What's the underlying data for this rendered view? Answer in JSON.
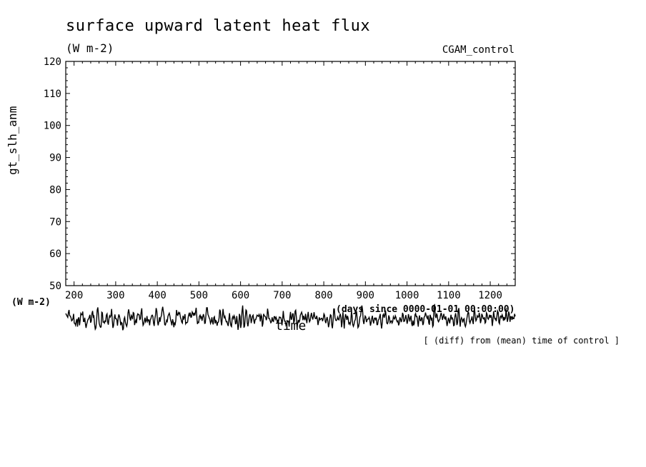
{
  "chart_data": {
    "type": "line",
    "title": "surface upward latent heat flux",
    "units": "(W m-2)",
    "run_label": "CGAM_control",
    "ylabel": "gt_slh_anm",
    "yunit": "(W m-2)",
    "xlabel": "time",
    "xunit": "(days since 0000-01-01 00:00:00)",
    "annotation": "[ (diff) from (mean) time of control ]",
    "xlim": [
      180,
      1260
    ],
    "ylim": [
      50,
      120
    ],
    "xticks": [
      200,
      300,
      400,
      500,
      600,
      700,
      800,
      900,
      1000,
      1100,
      1200
    ],
    "yticks": [
      50,
      60,
      70,
      80,
      90,
      100,
      110,
      120
    ],
    "series": [
      {
        "values": [
          41.3,
          40.9,
          40.5,
          40.1,
          41.6,
          42.4,
          40.6,
          40.5,
          40.0,
          39.0,
          39.2,
          39.8,
          41.2,
          38.3,
          38.2,
          37.6,
          38.9,
          39.6,
          37.2,
          39.6,
          40.1,
          37.6,
          39.2,
          41.3,
          40.9,
          40.9,
          41.9,
          38.8,
          38.8,
          40.0,
          38.1,
          36.8,
          37.9,
          38.8,
          39.5,
          39.6,
          40.3,
          40.9,
          38.4,
          39.0,
          41.3,
          42.1,
          40.2,
          40.5,
          38.0,
          36.4,
          36.8,
          39.1,
          42.4,
          43.2,
          41.0,
          38.3,
          37.5,
          37.0,
          37.1,
          41.7,
          41.5,
          38.6,
          38.7,
          38.3,
          39.0,
          38.8,
          40.8,
          41.2,
          38.6,
          37.8,
          39.7,
          40.6,
          40.2,
          40.7,
          42.7,
          39.2,
          36.8,
          37.5,
          39.9,
          41.0,
          39.7,
          39.7,
          39.3,
          37.5,
          39.9,
          41.0,
          40.4,
          39.3,
          37.6,
          38.5,
          38.2,
          36.1,
          36.6,
          39.6,
          40.1,
          38.6,
          37.8,
          37.3,
          38.2,
          41.4,
          42.6,
          41.4,
          39.8,
          39.1,
          40.7,
          40.3,
          39.5,
          41.6,
          41.4,
          37.7,
          38.6,
          39.2,
          38.3,
          40.6,
          41.2,
          40.9,
          40.9,
          39.4,
          39.6,
          41.6,
          42.9,
          39.3,
          37.6,
          38.0,
          39.1,
          40.0,
          38.6,
          39.0,
          40.5,
          38.8,
          39.3,
          39.3,
          37.6,
          39.3,
          39.7,
          40.6,
          40.8,
          40.4,
          38.2,
          37.4,
          39.7,
          40.8,
          43.0,
          42.0,
          38.9,
          37.6,
          38.6,
          40.1,
          38.7,
          40.1,
          40.6,
          42.4,
          43.4,
          41.9,
          40.7,
          37.8,
          37.7,
          38.4,
          39.2,
          38.8,
          40.4,
          41.0,
          41.4,
          40.5,
          39.3,
          38.6,
          37.6,
          39.5,
          38.7,
          37.0,
          38.3,
          37.9,
          39.1,
          42.4,
          40.9,
          40.7,
          41.6,
          41.2,
          41.5,
          40.1,
          39.5,
          38.6,
          38.3,
          40.6,
          39.4,
          40.2,
          41.1,
          38.1,
          38.5,
          38.4,
          38.6,
          40.3,
          41.2,
          40.7,
          41.6,
          40.1,
          40.2,
          41.8,
          41.4,
          40.6,
          41.5,
          40.7,
          41.7,
          43.1,
          40.3,
          38.0,
          38.6,
          38.5,
          40.4,
          40.8,
          39.9,
          40.5,
          39.0,
          40.1,
          41.1,
          40.3,
          38.2,
          38.3,
          40.9,
          43.1,
          43.1,
          41.0,
          40.5,
          39.9,
          39.4,
          38.2,
          38.8,
          40.1,
          38.6,
          37.9,
          40.0,
          40.3,
          38.2,
          39.1,
          38.8,
          37.5,
          38.5,
          38.6,
          39.9,
          42.5,
          42.0,
          38.9,
          37.6,
          40.2,
          42.7,
          40.9,
          39.8,
          40.4,
          39.4,
          38.7,
          38.8,
          37.9,
          37.4,
          39.6,
          41.4,
          38.9,
          37.5,
          37.2,
          39.7,
          40.3,
          39.7,
          40.6,
          40.0,
          38.1,
          38.2,
          40.5,
          38.6,
          36.2,
          37.7,
          41.2,
          40.4,
          36.8,
          38.0,
          41.8,
          43.8,
          40.5,
          36.9,
          37.4,
          40.1,
          42.4,
          42.1,
          38.5,
          37.3,
          38.6,
          40.1,
          41.1,
          40.4,
          38.3,
          39.4,
          40.5,
          40.8,
          39.0,
          38.1,
          39.4,
          39.4,
          40.1,
          40.8,
          40.6,
          40.4,
          41.0,
          40.5,
          38.8,
          40.9,
          40.4,
          37.2,
          38.2,
          41.2,
          40.6,
          40.5,
          40.2,
          39.2,
          39.9,
          42.8,
          41.6,
          39.7,
          39.7,
          39.0,
          38.4,
          38.7,
          40.1,
          39.0,
          38.8,
          40.3,
          40.3,
          39.5,
          40.1,
          39.5,
          38.4,
          39.2,
          39.1,
          40.2,
          40.1,
          40.1,
          39.3,
          37.6,
          39.6,
          42.1,
          39.9,
          38.9,
          38.9,
          37.7,
          38.2,
          38.6,
          39.0,
          38.9,
          37.2,
          40.0,
          41.8,
          39.5,
          39.5,
          41.2,
          41.2,
          38.3,
          39.0,
          42.0,
          42.3,
          40.0,
          36.8,
          38.3,
          39.3,
          38.6,
          39.0,
          40.8,
          41.2,
          41.7,
          40.9,
          39.2,
          40.6,
          39.7,
          39.2,
          41.2,
          39.6,
          38.3,
          40.3,
          41.8,
          39.8,
          38.7,
          39.1,
          40.5,
          41.5,
          40.2,
          39.4,
          40.4,
          41.7,
          40.3,
          39.7,
          39.7,
          40.6,
          39.6,
          37.7,
          38.8,
          40.1,
          39.3,
          39.5,
          39.8,
          39.8,
          38.9,
          39.6,
          41.2,
          40.8,
          38.9,
          38.3,
          39.5,
          40.2,
          38.8,
          37.0,
          38.0,
          39.7,
          40.9,
          40.7,
          37.7,
          36.7,
          39.0,
          42.7,
          42.7,
          40.0,
          39.2,
          39.1,
          39.4,
          40.2,
          39.5,
          39.3,
          40.6,
          41.2,
          40.0,
          37.0,
          38.8,
          41.7,
          39.3,
          36.6,
          39.4,
          41.1,
          40.4,
          39.3,
          40.6,
          39.8,
          38.1,
          38.4,
          37.9,
          38.9,
          42.0,
          40.6,
          37.9,
          37.3,
          37.9,
          39.0,
          39.4,
          41.4,
          41.7,
          39.2,
          36.9,
          37.3,
          38.5,
          40.2,
          40.6,
          42.3,
          43.8,
          42.4,
          39.0,
          38.0,
          39.4,
          40.5,
          40.2,
          38.6,
          39.3,
          39.6,
          39.6,
          40.1,
          39.4,
          37.5,
          38.4,
          39.8,
          40.6,
          39.0,
          38.2,
          39.8,
          39.9,
          39.4,
          40.0,
          37.8,
          37.8,
          39.2,
          39.5,
          40.4,
          41.2,
          38.4,
          36.6,
          38.3,
          40.8,
          41.1,
          40.0,
          40.8,
          42.2,
          40.3,
          38.3,
          38.1,
          38.6,
          40.7,
          40.0,
          38.4,
          38.8,
          39.0,
          38.3,
          38.7,
          40.3,
          39.8,
          39.6,
          40.6,
          40.1,
          39.1,
          38.7,
          39.0,
          37.6,
          38.2,
          40.1,
          39.6,
          38.6,
          39.4,
          41.5,
          40.9,
          38.8,
          38.9,
          39.8,
          40.8,
          39.6,
          38.1,
          39.0,
          41.1,
          40.1,
          38.8,
          39.9,
          40.6,
          38.1,
          37.4,
          39.1,
          37.6,
          38.2,
          40.9,
          41.3,
          40.3,
          40.4,
          38.8,
          37.2,
          39.7,
          40.7,
          39.1,
          39.0,
          40.0,
          39.9,
          37.7,
          38.2,
          40.1,
          40.5,
          41.6,
          40.8,
          40.1,
          39.7,
          40.7,
          38.3,
          37.8,
          40.9,
          40.3,
          39.1,
          40.0,
          37.2,
          37.6,
          43.8,
          44.0,
          40.6,
          39.9,
          41.3,
          40.7,
          39.1,
          38.7,
          39.2,
          39.6,
          40.8,
          41.5,
          40.6,
          39.3,
          40.3,
          41.2,
          39.8,
          39.6,
          40.4,
          38.9,
          37.4,
          38.7,
          40.0,
          39.2,
          38.2,
          39.5,
          40.9,
          39.6,
          39.9,
          39.4,
          37.5,
          37.6,
          40.4,
          41.4,
          40.0,
          37.7,
          38.4,
          42.3,
          43.0,
          39.5,
          37.2,
          39.4,
          40.0,
          39.5,
          38.5,
          39.5,
          39.7,
          37.8,
          37.2,
          38.0,
          39.4,
          40.8,
          41.7,
          41.5,
          38.9,
          38.3,
          39.1,
          39.4,
          40.4,
          38.9,
          38.0,
          41.7,
          42.5,
          40.1,
          39.0,
          39.4,
          40.6,
          40.2,
          40.2,
          41.5,
          40.3,
          38.3,
          39.2,
          41.2,
          40.6,
          39.7,
          39.6,
          40.1,
          38.3,
          38.6,
          41.5,
          41.1,
          39.8,
          39.5,
          40.1,
          40.9,
          40.0,
          40.8,
          40.0,
          37.4,
          39.1,
          42.0,
          40.3,
          39.6,
          39.7,
          38.9,
          40.4,
          42.1,
          41.6,
          38.5,
          38.1,
          40.2,
          40.5,
          40.0,
          40.9,
          40.3,
          39.0,
          40.2,
          39.4,
          39.8,
          42.6,
          40.4,
          38.7,
          39.8,
          41.9,
          41.2,
          38.7,
          40.3,
          40.3,
          39.3,
          40.2,
          39.7,
          39.7,
          41.2,
          40.4
        ]
      }
    ]
  }
}
